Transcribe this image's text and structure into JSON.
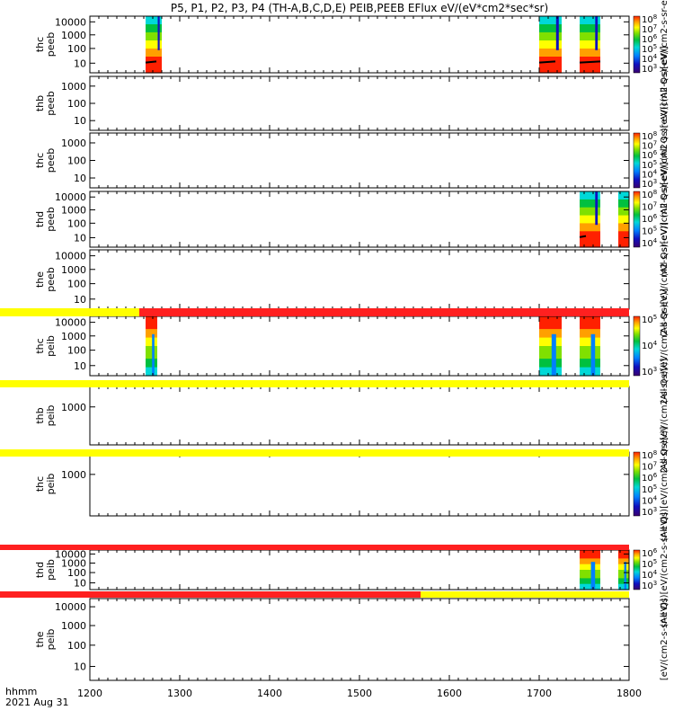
{
  "chart_data": {
    "type": "heatmap",
    "title": "P5, P1, P2, P3, P4 (TH-A,B,C,D,E) PEIB,PEEB EFlux eV/(eV*cm2*sec*sr)",
    "xlabel_line1": "hhmm",
    "xlabel_line2": "2021 Aug 31",
    "x_ticks": [
      "1200",
      "1300",
      "1400",
      "1500",
      "1600",
      "1700",
      "1800"
    ],
    "xlim": [
      1200,
      1800
    ],
    "palette": [
      "#3a0070",
      "#1010c0",
      "#0080ff",
      "#00d8d8",
      "#00c040",
      "#80e000",
      "#ffff00",
      "#ffa000",
      "#ff2000"
    ],
    "panels": [
      {
        "label": "thc\npeeb",
        "ylabel": [
          "thc",
          "peeb"
        ],
        "yticks": [
          "10000",
          "1000",
          "100",
          "10"
        ],
        "ylog": true,
        "intervals": [
          [
            1262,
            1280
          ],
          [
            1700,
            1725
          ],
          [
            1745,
            1768
          ]
        ],
        "floor_line": [
          [
            1262,
            1274
          ],
          [
            1700,
            1718
          ],
          [
            1745,
            1768
          ]
        ],
        "colorbar": {
          "label": "(All Qs)[eV/(cm2-s-sr-eV)]",
          "ticks": [
            "10^8",
            "10^7",
            "10^6",
            "10^5",
            "10^4",
            "10^3"
          ]
        }
      },
      {
        "label": "thb\npeeb",
        "ylabel": [
          "thb",
          "peeb"
        ],
        "yticks": [
          "1000",
          "100",
          "10"
        ],
        "ylog": true,
        "intervals": [],
        "floor_line": [],
        "colorbar": {
          "label": "(All Qs)[eV/(cm2-s-sr-eV)]",
          "ticks": []
        }
      },
      {
        "label": "thc\npeeb",
        "ylabel": [
          "thc",
          "peeb"
        ],
        "yticks": [
          "1000",
          "100",
          "10"
        ],
        "ylog": true,
        "intervals": [],
        "floor_line": [],
        "colorbar": {
          "label": "(All Qs)[eV/(cm2-s-sr-eV)]",
          "ticks": [
            "10^8",
            "10^7",
            "10^6",
            "10^5",
            "10^4",
            "10^3"
          ]
        }
      },
      {
        "label": "thd\npeeb",
        "ylabel": [
          "thd",
          "peeb"
        ],
        "yticks": [
          "10000",
          "1000",
          "100",
          "10"
        ],
        "ylog": true,
        "intervals": [
          [
            1745,
            1768
          ],
          [
            1788,
            1800
          ]
        ],
        "floor_line": [
          [
            1745,
            1752
          ]
        ],
        "colorbar": {
          "label": "(All Qs)[eV/(cm2-s-sr-eV)]",
          "ticks": [
            "10^8",
            "10^7",
            "10^6",
            "10^5",
            "10^4"
          ]
        }
      },
      {
        "label": "the\npeeb",
        "ylabel": [
          "the",
          "peeb"
        ],
        "yticks": [
          "10000",
          "1000",
          "100",
          "10"
        ],
        "ylog": true,
        "intervals": [],
        "floor_line": [],
        "colorbar": {
          "label": "(All Qs)[eV/(cm2-s-sr-eV)]",
          "ticks": []
        }
      },
      {
        "label": "thc\npeib",
        "ylabel": [
          "thc",
          "peib"
        ],
        "yticks": [
          "10000",
          "1000",
          "100",
          "10"
        ],
        "ylog": true,
        "intervals": [
          [
            1262,
            1275
          ],
          [
            1700,
            1725
          ],
          [
            1745,
            1768
          ]
        ],
        "colorbar": {
          "label": "(All Qs)[eV/(cm2-s-sr-eV)]",
          "ticks": [
            "10^5",
            "10^4",
            "10^3"
          ]
        }
      },
      {
        "label": "thb\npeib",
        "ylabel": [
          "thb",
          "peib"
        ],
        "yticks": [
          "1000"
        ],
        "ylog": true,
        "intervals": [],
        "colorbar": {
          "label": "(All Qs)[eV/(cm2-s-sr-eV)]",
          "ticks": []
        }
      },
      {
        "label": "thc\npeib",
        "ylabel": [
          "thc",
          "peib"
        ],
        "yticks": [
          "1000"
        ],
        "ylog": true,
        "intervals": [],
        "colorbar": {
          "label": "(All Qs)[eV/(cm2-s-sr-eV)]",
          "ticks": [
            "10^8",
            "10^7",
            "10^6",
            "10^5",
            "10^4",
            "10^3"
          ]
        }
      },
      {
        "label": "thd\npeib",
        "ylabel": [
          "thd",
          "peib"
        ],
        "yticks": [
          "10000",
          "1000",
          "100",
          "10"
        ],
        "ylog": true,
        "intervals": [
          [
            1745,
            1768
          ],
          [
            1788,
            1800
          ]
        ],
        "colorbar": {
          "label": "(All Qs)[eV/(cm2-s-sr-eV)]",
          "ticks": [
            "10^6",
            "10^5",
            "10^4",
            "10^3"
          ]
        }
      },
      {
        "label": "the\npeib",
        "ylabel": [
          "the",
          "peib"
        ],
        "yticks": [
          "10000",
          "1000",
          "100",
          "10"
        ],
        "ylog": true,
        "intervals": [],
        "colorbar": {
          "label": "[eV/(cm2-s-sr-eV)]",
          "ticks": []
        }
      }
    ],
    "status_bars": [
      {
        "segments": [
          {
            "from": 1200,
            "to": 1255,
            "color": "#ffff00"
          },
          {
            "from": 1255,
            "to": 1800,
            "color": "#ff2020"
          }
        ]
      },
      {
        "segments": [
          {
            "from": 1200,
            "to": 1800,
            "color": "#ffff00"
          }
        ]
      },
      {
        "segments": [
          {
            "from": 1200,
            "to": 1800,
            "color": "#ffff00"
          }
        ]
      },
      {
        "segments": [
          {
            "from": 1200,
            "to": 1800,
            "color": "#ff2020"
          }
        ]
      },
      {
        "segments": [
          {
            "from": 1200,
            "to": 1568,
            "color": "#ff2020"
          },
          {
            "from": 1568,
            "to": 1800,
            "color": "#ffff00"
          }
        ]
      }
    ]
  }
}
